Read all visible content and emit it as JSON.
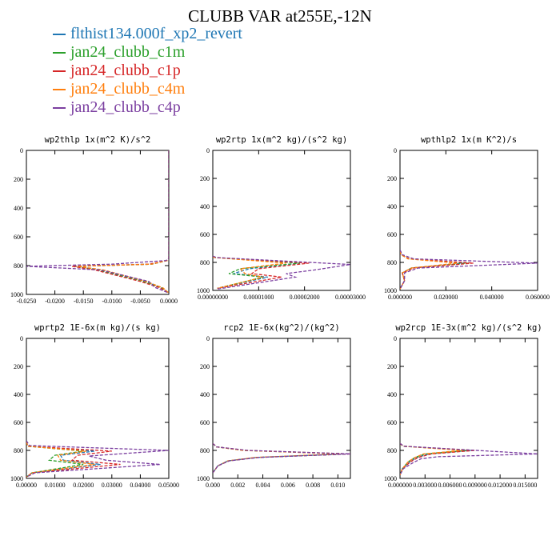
{
  "title": "CLUBB VAR at255E,-12N",
  "legend": [
    {
      "label": "flthist134.000f_xp2_revert",
      "color": "#1f77b4"
    },
    {
      "label": "jan24_clubb_c1m",
      "color": "#2ca02c"
    },
    {
      "label": "jan24_clubb_c1p",
      "color": "#d62728"
    },
    {
      "label": "jan24_clubb_c4m",
      "color": "#ff7f0e"
    },
    {
      "label": "jan24_clubb_c4p",
      "color": "#7b3fa0"
    }
  ],
  "chart_data": [
    {
      "type": "line",
      "title": "wp2thlp  1x(m^2 K)/s^2",
      "xlim": [
        -0.025,
        0.0
      ],
      "ylim": [
        1000,
        0
      ],
      "xtick_labels": [
        "-0.0250",
        "-0.0200",
        "-0.0150",
        "-0.0100",
        "-0.0050",
        "0.0000"
      ],
      "ytick_labels": [
        "0",
        "200",
        "400",
        "600",
        "800",
        "1000"
      ],
      "series": [
        {
          "name": "flthist134.000f_xp2_revert",
          "x": [
            0,
            0,
            -0.0003,
            -0.003,
            -0.0165,
            -0.012,
            -0.004,
            -0.0012,
            0
          ],
          "y": [
            0,
            750,
            765,
            790,
            805,
            830,
            910,
            955,
            990
          ]
        },
        {
          "name": "jan24_clubb_c1m",
          "x": [
            0,
            0,
            -0.0003,
            -0.003,
            -0.0165,
            -0.0125,
            -0.0045,
            -0.0012,
            0
          ],
          "y": [
            0,
            750,
            765,
            790,
            805,
            830,
            910,
            955,
            990
          ]
        },
        {
          "name": "jan24_clubb_c1p",
          "x": [
            0,
            0,
            -0.0003,
            -0.0035,
            -0.017,
            -0.013,
            -0.005,
            -0.0015,
            0
          ],
          "y": [
            0,
            750,
            765,
            790,
            805,
            830,
            910,
            955,
            990
          ]
        },
        {
          "name": "jan24_clubb_c4m",
          "x": [
            0,
            0,
            -0.0003,
            -0.003,
            -0.016,
            -0.0115,
            -0.004,
            -0.001,
            0
          ],
          "y": [
            0,
            750,
            765,
            790,
            805,
            830,
            910,
            955,
            990
          ]
        },
        {
          "name": "jan24_clubb_c4p",
          "x": [
            0,
            0,
            -0.0005,
            -0.01,
            -0.025,
            -0.012,
            -0.0035,
            -0.0025,
            0
          ],
          "y": [
            0,
            750,
            765,
            790,
            805,
            830,
            910,
            950,
            990
          ]
        }
      ]
    },
    {
      "type": "line",
      "title": "wp2rtp  1x(m^2 kg)/(s^2 kg)",
      "xlim": [
        0,
        3e-05
      ],
      "ylim": [
        1000,
        0
      ],
      "xtick_labels": [
        "0.00000000",
        "0.00001000",
        "0.00002000",
        "0.00003000"
      ],
      "ytick_labels": [
        "0",
        "200",
        "400",
        "600",
        "800",
        "1000"
      ],
      "series": [
        {
          "name": "flthist134.000f_xp2_revert",
          "x": [
            0,
            4e-07,
            1.9e-05,
            8e-06,
            4.5e-06,
            1.2e-05,
            1e-06
          ],
          "y": [
            760,
            765,
            805,
            845,
            880,
            905,
            985
          ]
        },
        {
          "name": "jan24_clubb_c1m",
          "x": [
            0,
            4e-07,
            1.9e-05,
            6e-06,
            3.5e-06,
            1.1e-05,
            1e-06
          ],
          "y": [
            760,
            765,
            805,
            845,
            880,
            905,
            985
          ]
        },
        {
          "name": "jan24_clubb_c1p",
          "x": [
            0,
            4e-07,
            2.1e-05,
            1e-05,
            8.5e-06,
            1.5e-05,
            1e-06
          ],
          "y": [
            760,
            765,
            805,
            845,
            880,
            905,
            985
          ]
        },
        {
          "name": "jan24_clubb_c4m",
          "x": [
            0,
            4e-07,
            1.6e-05,
            6e-06,
            7e-06,
            1.1e-05,
            1e-06
          ],
          "y": [
            760,
            765,
            805,
            845,
            880,
            905,
            985
          ]
        },
        {
          "name": "jan24_clubb_c4p",
          "x": [
            0,
            8e-07,
            3e-05,
            2.2e-05,
            1.6e-05,
            1.8e-05,
            1e-06
          ],
          "y": [
            755,
            765,
            815,
            855,
            880,
            905,
            990
          ]
        }
      ]
    },
    {
      "type": "line",
      "title": "wpthlp2  1x(m K^2)/s",
      "xlim": [
        0,
        0.06
      ],
      "ylim": [
        1000,
        0
      ],
      "xtick_labels": [
        "0.000000",
        "0.020000",
        "0.040000",
        "0.060000"
      ],
      "ytick_labels": [
        "0",
        "200",
        "400",
        "600",
        "800",
        "1000"
      ],
      "series": [
        {
          "name": "flthist134.000f_xp2_revert",
          "x": [
            0,
            0.0005,
            0.004,
            0.028,
            0.005,
            0.001,
            0.002,
            0
          ],
          "y": [
            720,
            745,
            775,
            805,
            840,
            875,
            930,
            990
          ]
        },
        {
          "name": "jan24_clubb_c1m",
          "x": [
            0,
            0.0005,
            0.004,
            0.03,
            0.005,
            0.001,
            0.002,
            0
          ],
          "y": [
            720,
            745,
            775,
            805,
            840,
            875,
            930,
            990
          ]
        },
        {
          "name": "jan24_clubb_c1p",
          "x": [
            0,
            0.0005,
            0.004,
            0.032,
            0.006,
            0.001,
            0.002,
            0
          ],
          "y": [
            720,
            745,
            775,
            805,
            840,
            875,
            930,
            990
          ]
        },
        {
          "name": "jan24_clubb_c4m",
          "x": [
            0,
            0.0005,
            0.0035,
            0.025,
            0.005,
            0.001,
            0.002,
            0
          ],
          "y": [
            720,
            745,
            775,
            805,
            840,
            875,
            930,
            990
          ]
        },
        {
          "name": "jan24_clubb_c4p",
          "x": [
            0,
            0.001,
            0.006,
            0.06,
            0.008,
            0.002,
            0.002,
            0
          ],
          "y": [
            710,
            745,
            775,
            805,
            840,
            875,
            930,
            990
          ]
        }
      ]
    },
    {
      "type": "line",
      "title": "wprtp2  1E-6x(m kg)/(s kg)",
      "xlim": [
        0,
        0.05
      ],
      "ylim": [
        1000,
        0
      ],
      "xtick_labels": [
        "0.00000",
        "0.01000",
        "0.02000",
        "0.03000",
        "0.04000",
        "0.05000"
      ],
      "ytick_labels": [
        "0",
        "200",
        "400",
        "600",
        "800",
        "1000"
      ],
      "series": [
        {
          "name": "flthist134.000f_xp2_revert",
          "x": [
            0,
            0.0005,
            0.024,
            0.012,
            0.013,
            0.026,
            0.002,
            0
          ],
          "y": [
            740,
            770,
            805,
            835,
            870,
            900,
            960,
            990
          ]
        },
        {
          "name": "jan24_clubb_c1m",
          "x": [
            0,
            0.0005,
            0.02,
            0.01,
            0.008,
            0.02,
            0.002,
            0
          ],
          "y": [
            740,
            770,
            805,
            835,
            870,
            900,
            960,
            990
          ]
        },
        {
          "name": "jan24_clubb_c1p",
          "x": [
            0,
            0.0005,
            0.03,
            0.018,
            0.016,
            0.033,
            0.002,
            0
          ],
          "y": [
            740,
            770,
            805,
            835,
            870,
            900,
            960,
            990
          ]
        },
        {
          "name": "jan24_clubb_c4m",
          "x": [
            0,
            0.0005,
            0.021,
            0.011,
            0.012,
            0.024,
            0.002,
            0
          ],
          "y": [
            740,
            770,
            805,
            835,
            870,
            900,
            960,
            990
          ]
        },
        {
          "name": "jan24_clubb_c4p",
          "x": [
            0,
            0.001,
            0.05,
            0.022,
            0.028,
            0.047,
            0.003,
            0
          ],
          "y": [
            730,
            765,
            800,
            840,
            870,
            900,
            960,
            990
          ]
        }
      ]
    },
    {
      "type": "line",
      "title": "rcp2  1E-6x(kg^2)/(kg^2)",
      "xlim": [
        0,
        0.011
      ],
      "ylim": [
        1000,
        0
      ],
      "xtick_labels": [
        "0.000",
        "0.002",
        "0.004",
        "0.006",
        "0.008",
        "0.010"
      ],
      "ytick_labels": [
        "0",
        "200",
        "400",
        "600",
        "800",
        "1000"
      ],
      "series": [
        {
          "name": "flthist134.000f_xp2_revert",
          "x": [
            0,
            0.0003,
            0.0025,
            0.0105,
            0.0035,
            0.0012,
            0.0004,
            0
          ],
          "y": [
            750,
            775,
            800,
            825,
            850,
            875,
            910,
            960
          ]
        },
        {
          "name": "jan24_clubb_c1m",
          "x": [
            0,
            0.0003,
            0.0025,
            0.0108,
            0.0035,
            0.0012,
            0.0004,
            0
          ],
          "y": [
            750,
            775,
            800,
            825,
            850,
            875,
            910,
            960
          ]
        },
        {
          "name": "jan24_clubb_c1p",
          "x": [
            0,
            0.0003,
            0.0027,
            0.011,
            0.0036,
            0.0013,
            0.0004,
            0
          ],
          "y": [
            750,
            775,
            800,
            825,
            850,
            875,
            910,
            960
          ]
        },
        {
          "name": "jan24_clubb_c4m",
          "x": [
            0,
            0.0003,
            0.0024,
            0.0102,
            0.0034,
            0.0012,
            0.0004,
            0
          ],
          "y": [
            750,
            775,
            800,
            825,
            850,
            875,
            910,
            960
          ]
        },
        {
          "name": "jan24_clubb_c4p",
          "x": [
            0,
            0.0003,
            0.0028,
            0.011,
            0.0037,
            0.0013,
            0.0004,
            0
          ],
          "y": [
            750,
            775,
            800,
            825,
            850,
            875,
            910,
            960
          ]
        }
      ]
    },
    {
      "type": "line",
      "title": "wp2rcp  1E-3x(m^2 kg)/(s^2 kg)",
      "xlim": [
        0,
        0.0165
      ],
      "ylim": [
        1000,
        0
      ],
      "xtick_labels": [
        "0.000000",
        "0.003000",
        "0.006000",
        "0.009000",
        "0.012000",
        "0.015000"
      ],
      "ytick_labels": [
        "0",
        "200",
        "400",
        "600",
        "800",
        "1000"
      ],
      "series": [
        {
          "name": "flthist134.000f_xp2_revert",
          "x": [
            0,
            0.0004,
            0.0085,
            0.0035,
            0.002,
            0.0012,
            0.0003,
            0
          ],
          "y": [
            750,
            770,
            800,
            825,
            850,
            880,
            930,
            975
          ]
        },
        {
          "name": "jan24_clubb_c1m",
          "x": [
            0,
            0.0004,
            0.008,
            0.003,
            0.0018,
            0.001,
            0.0003,
            0
          ],
          "y": [
            750,
            770,
            800,
            825,
            850,
            880,
            930,
            975
          ]
        },
        {
          "name": "jan24_clubb_c1p",
          "x": [
            0,
            0.0004,
            0.009,
            0.0038,
            0.0022,
            0.0013,
            0.0003,
            0
          ],
          "y": [
            750,
            770,
            800,
            825,
            850,
            880,
            930,
            975
          ]
        },
        {
          "name": "jan24_clubb_c4m",
          "x": [
            0,
            0.0004,
            0.0075,
            0.0028,
            0.0018,
            0.001,
            0.0003,
            0
          ],
          "y": [
            750,
            770,
            800,
            825,
            850,
            880,
            930,
            975
          ]
        },
        {
          "name": "jan24_clubb_c4p",
          "x": [
            0,
            0.0005,
            0.0165,
            0.0045,
            0.0025,
            0.0015,
            0.0004,
            0
          ],
          "y": [
            750,
            770,
            825,
            845,
            860,
            890,
            930,
            975
          ]
        }
      ]
    }
  ]
}
